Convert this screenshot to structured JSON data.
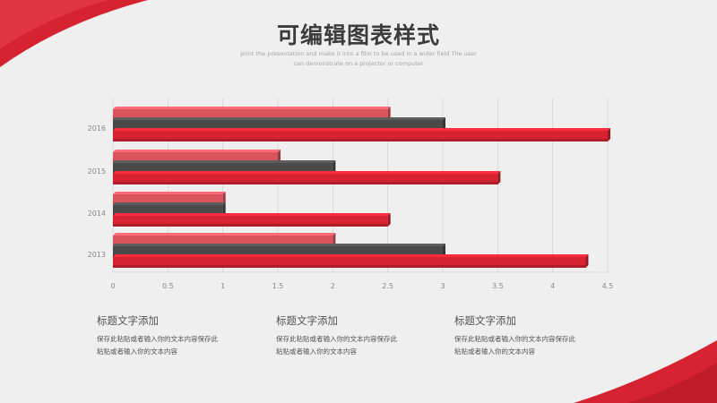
{
  "header": {
    "title": "可编辑图表样式",
    "subtitle_line1": "print the presentation and make it into a film to be used in a wider field The user",
    "subtitle_line2": "can demonstrate on a projector or computer"
  },
  "chart_data": {
    "type": "bar",
    "orientation": "horizontal",
    "categories": [
      "2016",
      "2015",
      "2014",
      "2013"
    ],
    "series": [
      {
        "values": [
          2.5,
          1.5,
          1,
          2
        ],
        "color": "#d9555e"
      },
      {
        "values": [
          3,
          2,
          1,
          3
        ],
        "color": "#4a4a4a"
      },
      {
        "values": [
          4.5,
          3.5,
          2.5,
          4.3
        ],
        "color": "#d72231"
      }
    ],
    "xlim": [
      0,
      4.5
    ],
    "x_ticks": [
      {
        "value": 0,
        "label": "0"
      },
      {
        "value": 0.5,
        "label": "0.5"
      },
      {
        "value": 1,
        "label": "1"
      },
      {
        "value": 1.5,
        "label": "1.5"
      },
      {
        "value": 2,
        "label": "2"
      },
      {
        "value": 2.5,
        "label": "2.5"
      },
      {
        "value": 3,
        "label": "3"
      },
      {
        "value": 3.5,
        "label": "3.5"
      },
      {
        "value": 4,
        "label": "4"
      },
      {
        "value": 4.5,
        "label": "4.5"
      }
    ],
    "grid": true,
    "legend": "none"
  },
  "columns": [
    {
      "title": "标题文字添加",
      "line1": "保存此粘贴或者输入你的文本内容保存此",
      "line2": "粘贴或者输入你的文本内容"
    },
    {
      "title": "标题文字添加",
      "line1": "保存此粘贴或者输入你的文本内容保存此",
      "line2": "粘贴或者输入你的文本内容"
    },
    {
      "title": "标题文字添加",
      "line1": "保存此粘贴或者输入你的文本内容保存此",
      "line2": "粘贴或者输入你的文本内容"
    }
  ],
  "colors": {
    "accent": "#d72231",
    "dark": "#4a4a4a",
    "light_red": "#d9555e"
  }
}
